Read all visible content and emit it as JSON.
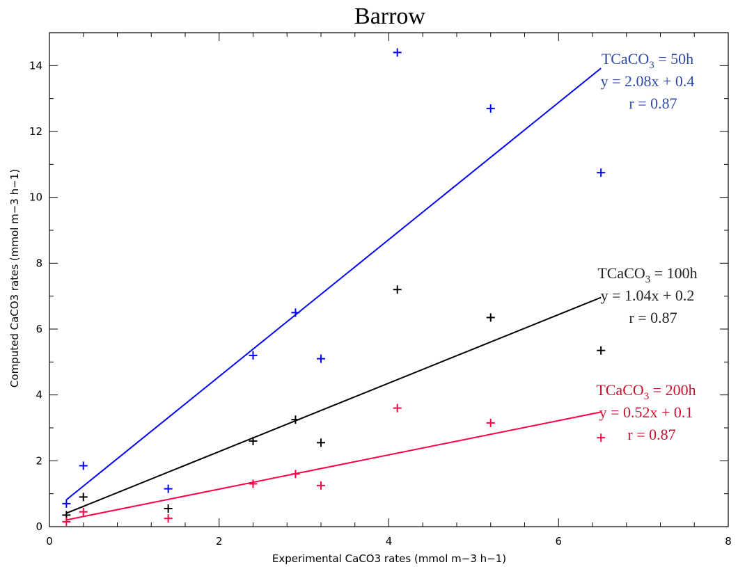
{
  "chart_data": {
    "type": "scatter",
    "title": "Barrow",
    "xlabel": "Experimental CaCO3 rates (mmol m−3 h−1)",
    "ylabel": "Computed CaCO3 rates (mmol m−3 h−1)",
    "xlim": [
      0,
      8
    ],
    "ylim": [
      0,
      15
    ],
    "xticks": [
      0,
      2,
      4,
      6,
      8
    ],
    "yticks": [
      0,
      2,
      4,
      6,
      8,
      10,
      12,
      14
    ],
    "grid": false,
    "x": [
      0.2,
      0.4,
      1.4,
      2.4,
      2.9,
      3.2,
      4.1,
      5.2,
      6.5
    ],
    "series": [
      {
        "color": "#0000ff",
        "values": [
          0.7,
          1.85,
          1.15,
          5.2,
          6.5,
          5.1,
          14.4,
          12.7,
          10.75
        ],
        "fit": {
          "slope": 2.08,
          "intercept": 0.4,
          "x_range": [
            0.2,
            6.5
          ]
        },
        "annotation": {
          "line1_pre": "TCaCO",
          "line1_sub": "3",
          "line1_post": " = 50h",
          "line2": "y = 2.08x + 0.4",
          "line3": "r = 0.87"
        }
      },
      {
        "color": "#000000",
        "values": [
          0.35,
          0.9,
          0.55,
          2.6,
          3.25,
          2.55,
          7.2,
          6.35,
          5.35
        ],
        "fit": {
          "slope": 1.04,
          "intercept": 0.2,
          "x_range": [
            0.2,
            6.5
          ]
        },
        "annotation": {
          "line1_pre": "TCaCO",
          "line1_sub": "3",
          "line1_post": " = 100h",
          "line2": "y = 1.04x + 0.2",
          "line3": "r = 0.87"
        }
      },
      {
        "color": "#ff0044",
        "values": [
          0.15,
          0.45,
          0.25,
          1.3,
          1.6,
          1.25,
          3.6,
          3.15,
          2.7
        ],
        "fit": {
          "slope": 0.52,
          "intercept": 0.1,
          "x_range": [
            0.2,
            6.5
          ]
        },
        "annotation": {
          "line1_pre": "TCaCO",
          "line1_sub": "3",
          "line1_post": " = 200h",
          "line2": "y = 0.52x + 0.1",
          "line3": "r = 0.87"
        }
      }
    ],
    "annotation_colors": [
      "#2e4aa8",
      "#222222",
      "#c8102e"
    ]
  }
}
